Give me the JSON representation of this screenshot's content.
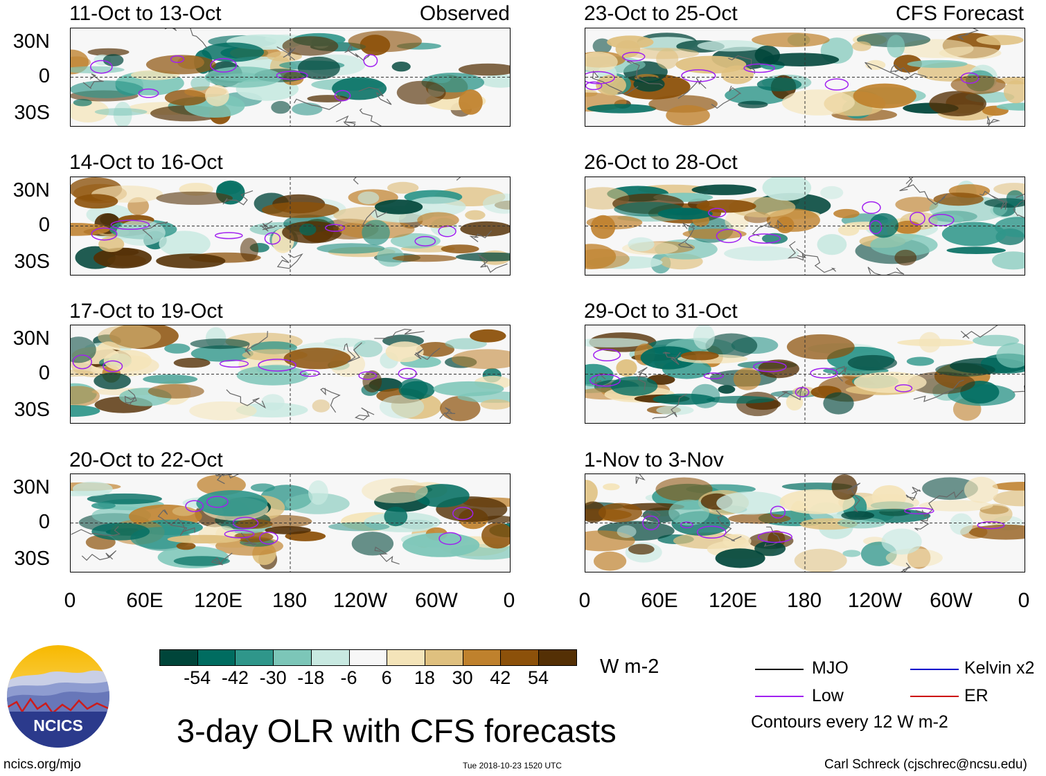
{
  "header": {
    "left_tag": "Observed",
    "right_tag": "CFS Forecast"
  },
  "panels_left": [
    "11-Oct to 13-Oct",
    "14-Oct to 16-Oct",
    "17-Oct to 19-Oct",
    "20-Oct to 22-Oct"
  ],
  "panels_right": [
    "23-Oct to 25-Oct",
    "26-Oct to 28-Oct",
    "29-Oct to 31-Oct",
    "1-Nov to 3-Nov"
  ],
  "lat_labels": [
    "30N",
    "0",
    "30S"
  ],
  "lon_labels": [
    "0",
    "60E",
    "120E",
    "180",
    "120W",
    "60W",
    "0"
  ],
  "colorbar": {
    "unit": "W m-2",
    "labels": [
      "-54",
      "-42",
      "-30",
      "-18",
      "-6",
      "6",
      "18",
      "30",
      "42",
      "54"
    ],
    "colors": [
      "#00453a",
      "#006c60",
      "#2f968a",
      "#7cc6b8",
      "#c8e9e1",
      "#f7f7f7",
      "#f4e4b9",
      "#dfc07f",
      "#bf812d",
      "#8c510a",
      "#543005"
    ]
  },
  "legend": {
    "items": [
      {
        "label": "MJO",
        "color": "#000000"
      },
      {
        "label": "Kelvin x2",
        "color": "#0000cc"
      },
      {
        "label": "Low",
        "color": "#a020f0"
      },
      {
        "label": "ER",
        "color": "#cc0000"
      }
    ],
    "note": "Contours every 12 W m-2"
  },
  "title": "3-day OLR with CFS forecasts",
  "logo_text": "NCICS",
  "footer": {
    "left": "ncics.org/mjo",
    "center": "Tue 2018-10-23 1520 UTC",
    "right": "Carl Schreck (cjschrec@ncsu.edu)"
  }
}
